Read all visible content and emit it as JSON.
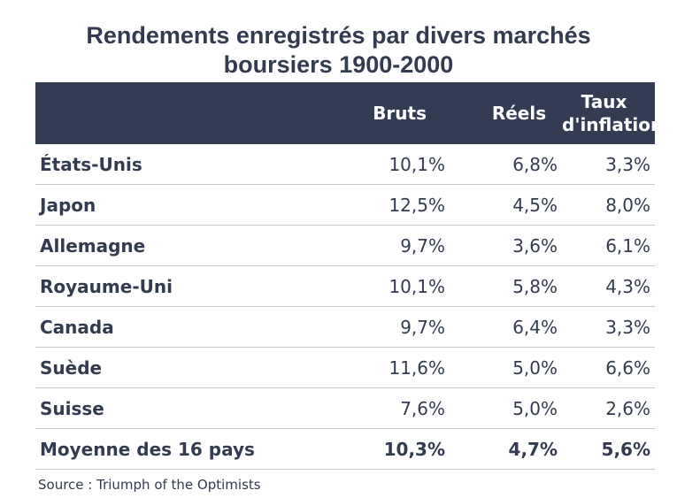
{
  "title": {
    "line1": "Rendements enregistrés par divers marchés",
    "line2": "boursiers 1900-2000"
  },
  "table": {
    "headers": [
      "",
      "Bruts",
      "Réels",
      "Taux",
      "d'inflation"
    ],
    "rows": [
      {
        "country": "États-Unis",
        "bruts": "10,1%",
        "reels": "6,8%",
        "inflation": "3,3%"
      },
      {
        "country": "Japon",
        "bruts": "12,5%",
        "reels": "4,5%",
        "inflation": "8,0%"
      },
      {
        "country": "Allemagne",
        "bruts": "9,7%",
        "reels": "3,6%",
        "inflation": "6,1%"
      },
      {
        "country": "Royaume-Uni",
        "bruts": "10,1%",
        "reels": "5,8%",
        "inflation": "4,3%"
      },
      {
        "country": "Canada",
        "bruts": "9,7%",
        "reels": "6,4%",
        "inflation": "3,3%"
      },
      {
        "country": "Suède",
        "bruts": "11,6%",
        "reels": "5,0%",
        "inflation": "6,6%"
      },
      {
        "country": "Suisse",
        "bruts": "7,6%",
        "reels": "5,0%",
        "inflation": "2,6%"
      }
    ],
    "average": {
      "country": "Moyenne des 16 pays",
      "bruts": "10,3%",
      "reels": "4,7%",
      "inflation": "5,6%"
    }
  },
  "source": "Source : Triumph of the Optimists",
  "colors": {
    "header_bg": "#343c54",
    "text": "#333b4f",
    "divider": "#c8c8c8"
  }
}
